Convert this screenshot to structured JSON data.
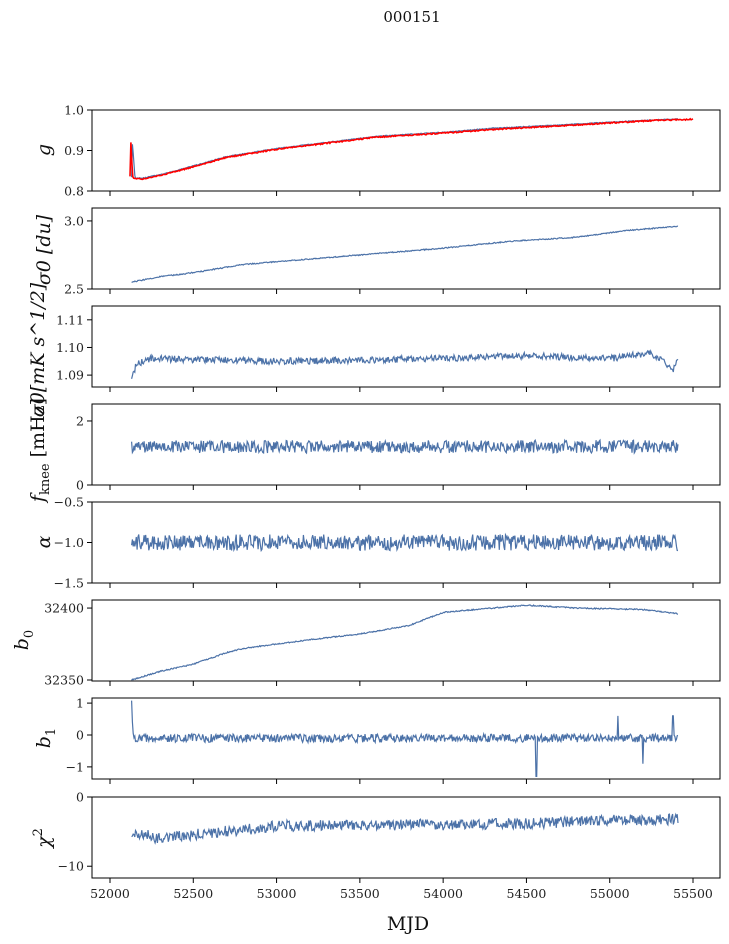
{
  "chart_data": {
    "type": "line",
    "title": "000151",
    "xlabel": "MJD",
    "xlim": [
      51892,
      55662
    ],
    "xticks": [
      52000,
      52500,
      53000,
      53500,
      54000,
      54500,
      55000,
      55500
    ],
    "xtick_labels": [
      "52000",
      "52500",
      "53000",
      "53500",
      "54000",
      "54500",
      "55000",
      "55500"
    ],
    "line_color": "#4c72a8",
    "ref_color": "#ff0000",
    "panels": [
      {
        "ylabel": "g",
        "ylim": [
          0.8,
          1.0
        ],
        "yticks": [
          0.8,
          0.9,
          1.0
        ],
        "ytick_labels": [
          "0.8",
          "0.9",
          "1.0"
        ],
        "x": [
          52130,
          52135,
          52150,
          52200,
          52350,
          52500,
          52700,
          53000,
          53300,
          53600,
          54000,
          54300,
          54700,
          55000,
          55300,
          55410
        ],
        "y": [
          0.835,
          0.92,
          0.832,
          0.832,
          0.845,
          0.862,
          0.885,
          0.905,
          0.92,
          0.935,
          0.945,
          0.955,
          0.963,
          0.97,
          0.976,
          0.978
        ],
        "noise": 0.001,
        "reference": {
          "x": [
            52120,
            52125,
            52135,
            52145,
            52200,
            52350,
            52500,
            52700,
            53000,
            53300,
            53600,
            54000,
            54300,
            54700,
            55000,
            55300,
            55500
          ],
          "y": [
            0.835,
            0.925,
            0.835,
            0.83,
            0.83,
            0.843,
            0.86,
            0.883,
            0.903,
            0.918,
            0.933,
            0.943,
            0.952,
            0.961,
            0.968,
            0.975,
            0.977
          ]
        }
      },
      {
        "ylabel": "σ0 [du]",
        "ylim": [
          2.5,
          3.095
        ],
        "yticks": [
          2.5,
          3.0
        ],
        "ytick_labels": [
          "2.5",
          "3.0"
        ],
        "x": [
          52130,
          52300,
          52500,
          52800,
          53000,
          53200,
          53600,
          54000,
          54400,
          54800,
          55100,
          55410
        ],
        "y": [
          2.55,
          2.59,
          2.62,
          2.68,
          2.7,
          2.72,
          2.76,
          2.8,
          2.85,
          2.88,
          2.93,
          2.96
        ],
        "noise": 0.004
      },
      {
        "ylabel": "σ0[mK s^1/2]",
        "ylim": [
          1.0857,
          1.115
        ],
        "yticks": [
          1.09,
          1.1,
          1.11
        ],
        "ytick_labels": [
          "1.09",
          "1.10",
          "1.11"
        ],
        "x": [
          52130,
          52160,
          52250,
          53000,
          54000,
          54500,
          55000,
          55250,
          55380,
          55410
        ],
        "y": [
          1.089,
          1.094,
          1.096,
          1.095,
          1.096,
          1.097,
          1.096,
          1.098,
          1.092,
          1.096
        ],
        "noise": 0.0012
      },
      {
        "ylabel": "f_knee [mHz]",
        "ylim": [
          0,
          2.53
        ],
        "yticks": [
          0,
          2
        ],
        "ytick_labels": [
          "0",
          "2"
        ],
        "x": [
          52130,
          55410
        ],
        "y": [
          1.2,
          1.2
        ],
        "noise": 0.2
      },
      {
        "ylabel": "α",
        "ylim": [
          -1.5,
          -0.5
        ],
        "yticks": [
          -1.5,
          -1.0,
          -0.5
        ],
        "ytick_labels": [
          "−1.5",
          "−1.0",
          "−0.5"
        ],
        "x": [
          52130,
          55410
        ],
        "y": [
          -1.0,
          -1.0
        ],
        "noise": 0.1
      },
      {
        "ylabel": "b0",
        "ylim": [
          32349.3,
          32405.6
        ],
        "yticks": [
          32350,
          32400
        ],
        "ytick_labels": [
          "32350",
          "32400"
        ],
        "x": [
          52130,
          52300,
          52500,
          52700,
          52800,
          53200,
          53500,
          53800,
          54000,
          54500,
          54800,
          55200,
          55410
        ],
        "y": [
          32350,
          32356,
          32361,
          32369,
          32372,
          32378,
          32382,
          32388,
          32397,
          32402,
          32400,
          32399,
          32396
        ],
        "noise": 0.4
      },
      {
        "ylabel": "b1",
        "ylim": [
          -1.38,
          1.16
        ],
        "yticks": [
          -1,
          0,
          1
        ],
        "ytick_labels": [
          "−1",
          "0",
          "1"
        ],
        "x": [
          52130,
          52140,
          52160,
          55410
        ],
        "y": [
          1.0,
          -0.1,
          -0.1,
          -0.1
        ],
        "noise": 0.13,
        "spikes": [
          {
            "x": 54560,
            "y": -1.3
          },
          {
            "x": 55200,
            "y": -0.9
          },
          {
            "x": 55050,
            "y": 0.6
          },
          {
            "x": 55380,
            "y": 0.6
          }
        ]
      },
      {
        "ylabel": "χ2",
        "ylim": [
          -11.7,
          0
        ],
        "yticks": [
          -10,
          0
        ],
        "ytick_labels": [
          "−10",
          "0"
        ],
        "x": [
          52130,
          52300,
          52600,
          53000,
          53500,
          54000,
          54500,
          55000,
          55410
        ],
        "y": [
          -5,
          -6,
          -5.2,
          -4.2,
          -4,
          -4,
          -3.8,
          -3.4,
          -3.2
        ],
        "noise": 0.8
      }
    ]
  }
}
